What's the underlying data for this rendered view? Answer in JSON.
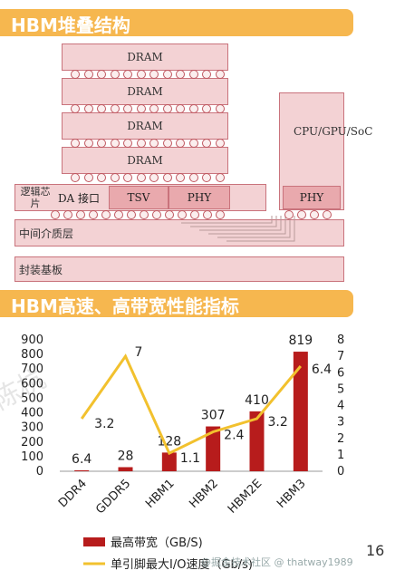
{
  "section1_title": "HBM堆叠结构",
  "section2_title": "HBM高速、高带宽性能指标",
  "diagram": {
    "dram_labels": [
      "DRAM",
      "DRAM",
      "DRAM",
      "DRAM"
    ],
    "logic_label": "逻辑芯片",
    "da_label": "DA 接口",
    "tsv_label": "TSV",
    "phy_label": "PHY",
    "soc_label": "CPU/GPU/SoC",
    "soc_phy_label": "PHY",
    "interposer_label": "中间介质层",
    "substrate_label": "封装基板"
  },
  "chart_data": {
    "type": "bar+line",
    "categories": [
      "DDR4",
      "GDDR5",
      "HBM1",
      "HBM2",
      "HBM2E",
      "HBM3"
    ],
    "series": [
      {
        "name": "最高带宽（GB/S)",
        "type": "bar",
        "axis": "left",
        "values": [
          6.4,
          28,
          128,
          307,
          410,
          819
        ],
        "labels": [
          "6.4",
          "28",
          "128",
          "307",
          "410",
          "819"
        ],
        "color": "#b71c1c"
      },
      {
        "name": "单引脚最大I/O速度（Gb/s)",
        "type": "line",
        "axis": "right",
        "values": [
          3.2,
          7,
          1.1,
          2.4,
          3.2,
          6.4
        ],
        "labels": [
          "3.2",
          "7",
          "1.1",
          "2.4",
          "3.2",
          "6.4"
        ],
        "color": "#f2c12e"
      }
    ],
    "y_left": {
      "min": 0,
      "max": 900,
      "ticks": [
        "0",
        "100",
        "200",
        "300",
        "400",
        "500",
        "600",
        "700",
        "800",
        "900"
      ]
    },
    "y_right": {
      "min": 0,
      "max": 8,
      "ticks": [
        "0",
        "1",
        "2",
        "3",
        "4",
        "5",
        "6",
        "7",
        "8"
      ]
    },
    "legend_position": "bottom"
  },
  "watermark_text": "陈杭",
  "footer_source": "@掘金技术社区 @ thatway1989",
  "page_number": "16"
}
